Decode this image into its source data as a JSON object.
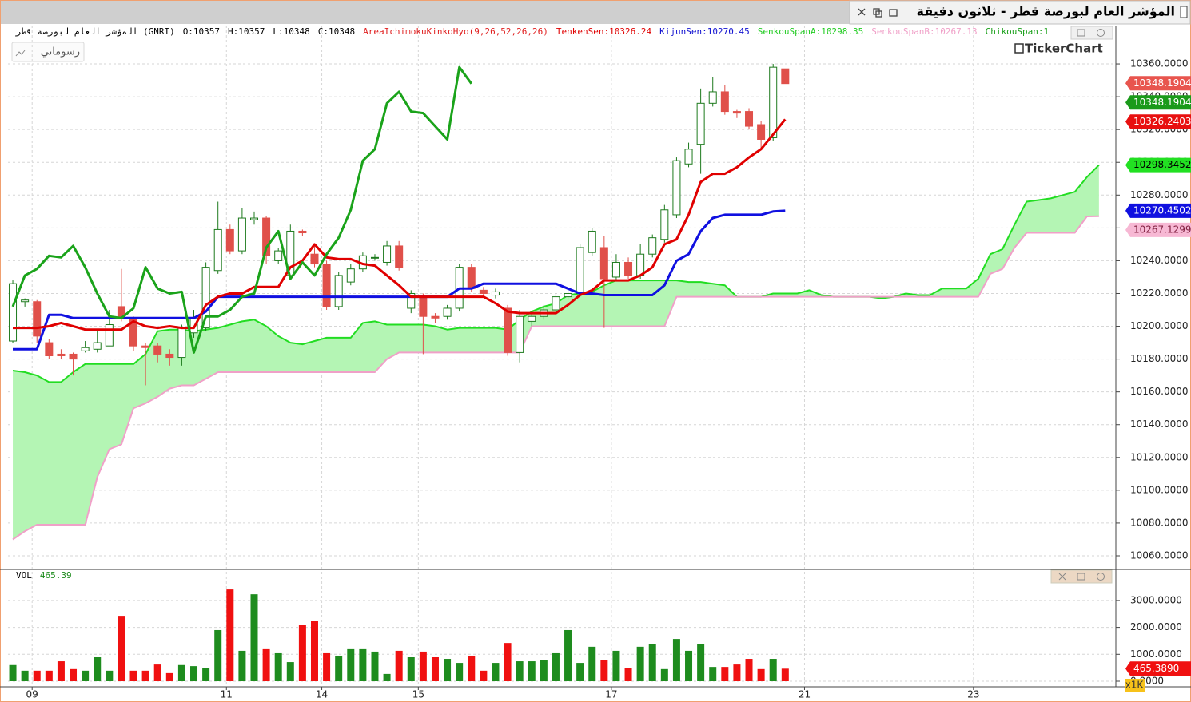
{
  "window": {
    "title": "المؤشر العام لبورصة قطر - ثلاثون دقيقة",
    "drawings_button": "رسوماتي",
    "logo": "TickerChart"
  },
  "chart_data": [
    {
      "type": "candlestick",
      "header": [
        {
          "text": "المؤشر العام لبورصة قطر (GNRI)",
          "color": "#000000"
        },
        {
          "text": "O:10357",
          "color": "#000000"
        },
        {
          "text": "H:10357",
          "color": "#000000"
        },
        {
          "text": "L:10348",
          "color": "#000000"
        },
        {
          "text": "C:10348",
          "color": "#000000"
        },
        {
          "text": "AreaIchimokuKinkoHyo(9,26,52,26,26)",
          "color": "#e02020"
        },
        {
          "text": "TenkenSen:10326.24",
          "color": "#e00000"
        },
        {
          "text": "KijunSen:10270.45",
          "color": "#1010d0"
        },
        {
          "text": "SenkouSpanA:10298.35",
          "color": "#22cc22"
        },
        {
          "text": "SenkouSpanB:10267.13",
          "color": "#f0a0c8"
        },
        {
          "text": "ChikouSpan:1",
          "color": "#1aa01a"
        }
      ],
      "xlim": [
        -0.4,
        91.4
      ],
      "xticks": [
        {
          "value": 1.6,
          "label": "09"
        },
        {
          "value": 17.7,
          "label": "11"
        },
        {
          "value": 25.6,
          "label": "14"
        },
        {
          "value": 33.6,
          "label": "15"
        },
        {
          "value": 49.6,
          "label": "17"
        },
        {
          "value": 65.6,
          "label": "21"
        },
        {
          "value": 79.6,
          "label": "23"
        }
      ],
      "ylim": [
        10052.2,
        10383.4
      ],
      "yticks": [
        {
          "value": 10060,
          "label": "10060.0000"
        },
        {
          "value": 10080,
          "label": "10080.0000"
        },
        {
          "value": 10100,
          "label": "10100.0000"
        },
        {
          "value": 10120,
          "label": "10120.0000"
        },
        {
          "value": 10140,
          "label": "10140.0000"
        },
        {
          "value": 10160,
          "label": "10160.0000"
        },
        {
          "value": 10180,
          "label": "10180.0000"
        },
        {
          "value": 10200,
          "label": "10200.0000"
        },
        {
          "value": 10220,
          "label": "10220.0000"
        },
        {
          "value": 10240,
          "label": "10240.0000"
        },
        {
          "value": 10260,
          "label": "10260.0000"
        },
        {
          "value": 10280,
          "label": "10280.0000"
        },
        {
          "value": 10300,
          "label": "10300.0000"
        },
        {
          "value": 10320,
          "label": "10320.0000"
        },
        {
          "value": 10340,
          "label": "10340.0000"
        },
        {
          "value": 10360,
          "label": "10360.0000"
        }
      ],
      "grid": true,
      "up_color": "#1d7a1d",
      "down_color": "#e0504a",
      "open": [
        10191,
        10215,
        10215,
        10190,
        10183,
        10183,
        10185,
        10186,
        10188,
        10212,
        10205,
        10188,
        10188,
        10183,
        10181,
        10196,
        10199,
        10234,
        10259,
        10246,
        10265,
        10266,
        10240,
        10231,
        10258,
        10244,
        10238,
        10212,
        10227,
        10235,
        10242,
        10239,
        10249,
        10211,
        10218,
        10206,
        10206,
        10211,
        10236,
        10222,
        10219,
        10211,
        10184,
        10203,
        10206,
        10210,
        10218,
        10220,
        10245,
        10248,
        10230,
        10239,
        10231,
        10244,
        10253,
        10268,
        10299,
        10311,
        10336,
        10343,
        10331,
        10331,
        10323,
        10315,
        10357
      ],
      "high": [
        10228,
        10217,
        10216,
        10192,
        10186,
        10184,
        10191,
        10197,
        10210,
        10235,
        10206,
        10190,
        10190,
        10186,
        10201,
        10210,
        10239,
        10276,
        10262,
        10272,
        10270,
        10267,
        10248,
        10262,
        10259,
        10250,
        10240,
        10233,
        10238,
        10245,
        10244,
        10252,
        10252,
        10222,
        10220,
        10208,
        10213,
        10238,
        10238,
        10224,
        10223,
        10213,
        10210,
        10209,
        10213,
        10220,
        10222,
        10250,
        10260,
        10255,
        10244,
        10242,
        10250,
        10256,
        10274,
        10303,
        10312,
        10345,
        10352,
        10347,
        10332,
        10333,
        10325,
        10360,
        10357
      ],
      "low": [
        10190,
        10212,
        10190,
        10180,
        10180,
        10170,
        10184,
        10184,
        10188,
        10203,
        10185,
        10164,
        10178,
        10176,
        10176,
        10193,
        10197,
        10232,
        10244,
        10244,
        10262,
        10238,
        10238,
        10229,
        10255,
        10236,
        10210,
        10210,
        10225,
        10233,
        10240,
        10237,
        10234,
        10208,
        10183,
        10202,
        10204,
        10209,
        10221,
        10218,
        10217,
        10182,
        10178,
        10200,
        10204,
        10208,
        10216,
        10218,
        10243,
        10199,
        10228,
        10229,
        10229,
        10242,
        10251,
        10266,
        10297,
        10293,
        10334,
        10329,
        10327,
        10320,
        10308,
        10313,
        10348
      ],
      "close": [
        10226,
        10216,
        10194,
        10182,
        10182,
        10180,
        10187,
        10190,
        10201,
        10206,
        10188,
        10187,
        10183,
        10181,
        10199,
        10205,
        10236,
        10259,
        10246,
        10266,
        10266,
        10243,
        10246,
        10258,
        10257,
        10238,
        10212,
        10231,
        10235,
        10243,
        10242,
        10249,
        10236,
        10220,
        10206,
        10205,
        10211,
        10236,
        10223,
        10220,
        10221,
        10184,
        10206,
        10206,
        10210,
        10218,
        10220,
        10248,
        10258,
        10229,
        10239,
        10231,
        10244,
        10254,
        10271,
        10301,
        10308,
        10336,
        10343,
        10331,
        10330,
        10322,
        10314,
        10358,
        10348
      ],
      "cloud_fill": "#b4f5b4",
      "series": [
        {
          "color": "#22dd22",
          "width": 2,
          "values": [
            10173,
            10172,
            10170,
            10166,
            10166,
            10172,
            10177,
            10177,
            10177,
            10177,
            10177,
            10183,
            10197,
            10198,
            10198,
            10197,
            10198,
            10199,
            10201,
            10203,
            10204,
            10200,
            10194,
            10190,
            10189,
            10191,
            10193,
            10193,
            10193,
            10202,
            10203,
            10201,
            10201,
            10201,
            10201,
            10200,
            10198,
            10199,
            10199,
            10199,
            10199,
            10198,
            10204,
            10209,
            10212,
            10214,
            10219,
            10220,
            10221,
            10225,
            10228,
            10228,
            10228,
            10228,
            10228,
            10228,
            10227,
            10227,
            10226,
            10225,
            10218,
            10218,
            10218,
            10220,
            10220,
            10220,
            10222,
            10219,
            10218,
            10218,
            10218,
            10218,
            10217,
            10218,
            10220,
            10219,
            10219,
            10223,
            10223,
            10223,
            10229,
            10244,
            10247,
            10262,
            10276,
            10277,
            10278,
            10280,
            10282,
            10291,
            10298.35
          ]
        },
        {
          "color": "#f0a0c8",
          "width": 2,
          "values": [
            10070,
            10075,
            10079,
            10079,
            10079,
            10079,
            10079,
            10108,
            10125,
            10128,
            10150,
            10153,
            10157,
            10162,
            10164,
            10164,
            10168,
            10172,
            10172,
            10172,
            10172,
            10172,
            10172,
            10172,
            10172,
            10172,
            10172,
            10172,
            10172,
            10172,
            10172,
            10180,
            10184,
            10184,
            10184,
            10184,
            10184,
            10184,
            10184,
            10184,
            10184,
            10184,
            10184,
            10200,
            10200,
            10200,
            10200,
            10200,
            10200,
            10200,
            10200,
            10200,
            10200,
            10200,
            10200,
            10218,
            10218,
            10218,
            10218,
            10218,
            10218,
            10218,
            10218,
            10218,
            10218,
            10218,
            10218,
            10218,
            10218,
            10218,
            10218,
            10218,
            10218,
            10218,
            10218,
            10218,
            10218,
            10218,
            10218,
            10218,
            10218,
            10232,
            10235,
            10248,
            10257,
            10257,
            10257,
            10257,
            10257,
            10267,
            10267.13
          ]
        },
        {
          "color": "#1010e0",
          "width": 3,
          "values": [
            10186,
            10186,
            10186,
            10207,
            10207,
            10205,
            10205,
            10205,
            10205,
            10205,
            10205,
            10205,
            10205,
            10205,
            10205,
            10205,
            10209,
            10218,
            10218,
            10218,
            10218,
            10218,
            10218,
            10218,
            10218,
            10218,
            10218,
            10218,
            10218,
            10218,
            10218,
            10218,
            10218,
            10218,
            10218,
            10218,
            10218,
            10223,
            10223,
            10226,
            10226,
            10226,
            10226,
            10226,
            10226,
            10226,
            10223,
            10220,
            10220,
            10219,
            10219,
            10219,
            10219,
            10219,
            10225,
            10240,
            10244,
            10258,
            10266,
            10268,
            10268,
            10268,
            10268,
            10270,
            10270.45
          ]
        },
        {
          "color": "#e00000",
          "width": 3,
          "values": [
            10199,
            10199,
            10199,
            10200,
            10202,
            10200,
            10198,
            10198,
            10198,
            10198,
            10203,
            10200,
            10199,
            10200,
            10199,
            10199,
            10213,
            10218,
            10220,
            10220,
            10224,
            10224,
            10224,
            10236,
            10240,
            10250,
            10242,
            10241,
            10241,
            10238,
            10237,
            10231,
            10225,
            10218,
            10218,
            10218,
            10218,
            10218,
            10218,
            10218,
            10214,
            10209,
            10208,
            10208,
            10208,
            10208,
            10213,
            10219,
            10222,
            10228,
            10228,
            10228,
            10231,
            10236,
            10250,
            10253,
            10268,
            10288,
            10293,
            10293,
            10297,
            10303,
            10308,
            10317,
            10326.24
          ]
        },
        {
          "color": "#1aa31a",
          "width": 3,
          "values": [
            10212,
            10231,
            10235,
            10243,
            10242,
            10249,
            10236,
            10220,
            10206,
            10205,
            10211,
            10236,
            10223,
            10220,
            10221,
            10184,
            10206,
            10206,
            10210,
            10218,
            10220,
            10248,
            10258,
            10229,
            10239,
            10231,
            10244,
            10254,
            10271,
            10301,
            10308,
            10336,
            10343,
            10331,
            10330,
            10322,
            10314,
            10358,
            10348
          ]
        }
      ],
      "price_tags": [
        {
          "value": 10348.1904,
          "color": "#e8554e",
          "text_color": "#ffffff"
        },
        {
          "value": 10348.1904,
          "color": "#1a9a1a",
          "text_color": "#ffffff"
        },
        {
          "value": 10326.2403,
          "color": "#e81010",
          "text_color": "#ffffff"
        },
        {
          "value": 10298.3452,
          "color": "#22e022",
          "text_color": "#000000"
        },
        {
          "value": 10270.4502,
          "color": "#1010e0",
          "text_color": "#ffffff"
        },
        {
          "value": 10267.1299,
          "color": "#f7b8d4",
          "text_color": "#802040"
        }
      ]
    },
    {
      "type": "bar",
      "header": [
        {
          "text": "VOL",
          "color": "#000000"
        },
        {
          "text": "465.39",
          "color": "#1a8a1a"
        }
      ],
      "xlim": [
        -0.4,
        91.4
      ],
      "ylim": [
        -208,
        4125
      ],
      "yticks": [
        {
          "value": 0,
          "label": "0.0000"
        },
        {
          "value": 1000,
          "label": "1000.0000"
        },
        {
          "value": 2000,
          "label": "2000.0000"
        },
        {
          "value": 3000,
          "label": "3000.0000"
        }
      ],
      "unit_label": "x1K",
      "grid": true,
      "up_color": "#1e8c1e",
      "down_color": "#f01010",
      "values": [
        600,
        390,
        390,
        390,
        740,
        450,
        390,
        890,
        390,
        2430,
        390,
        390,
        620,
        300,
        600,
        560,
        500,
        1900,
        3410,
        1130,
        3230,
        1190,
        1040,
        710,
        2100,
        2230,
        1040,
        950,
        1190,
        1190,
        1100,
        270,
        1130,
        890,
        1100,
        890,
        830,
        680,
        950,
        390,
        680,
        1420,
        740,
        740,
        800,
        1040,
        1900,
        680,
        1280,
        800,
        1130,
        500,
        1280,
        1390,
        450,
        1570,
        1130,
        1390,
        530,
        530,
        620,
        830,
        450,
        830,
        465.389
      ],
      "price_tags": [
        {
          "value": 465.389,
          "label": "465.3890",
          "color": "#f01010",
          "text_color": "#ffffff"
        }
      ]
    }
  ]
}
